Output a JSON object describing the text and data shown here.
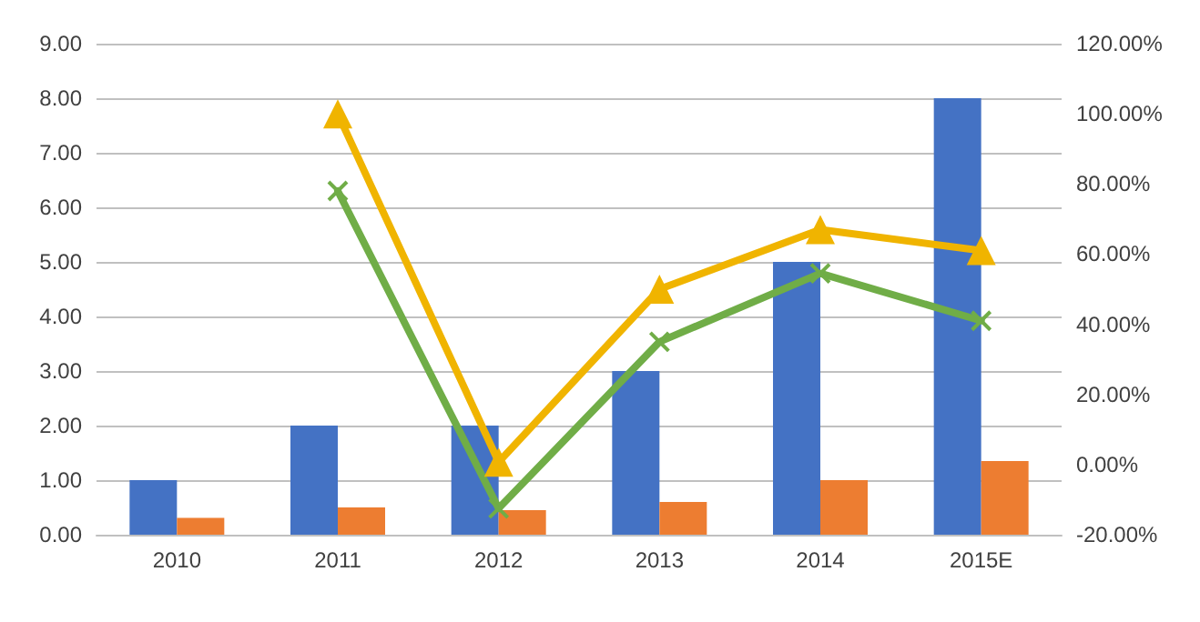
{
  "chart_data": {
    "type": "bar",
    "categories": [
      "2010",
      "2011",
      "2012",
      "2013",
      "2014",
      "2015E"
    ],
    "series": [
      {
        "color": "#4472c4",
        "values": [
          1,
          2,
          2,
          3,
          5,
          8
        ]
      },
      {
        "color": "#ed7d31",
        "values": [
          0.31,
          0.5,
          0.45,
          0.6,
          1.0,
          1.35
        ]
      },
      {
        "type": "line",
        "axis": "y2",
        "color": "#f0b400",
        "marker": "triangle",
        "values": [
          null,
          100,
          0.7,
          50,
          67,
          61
        ]
      },
      {
        "type": "line",
        "axis": "y2",
        "color": "#70ad47",
        "marker": "cross",
        "values": [
          null,
          78,
          -12.5,
          35,
          54.5,
          41
        ]
      }
    ],
    "ylim": [
      0,
      9
    ],
    "yticks": [
      {
        "value": 0,
        "label": "0.00"
      },
      {
        "value": 1,
        "label": "1.00"
      },
      {
        "value": 2,
        "label": "2.00"
      },
      {
        "value": 3,
        "label": "3.00"
      },
      {
        "value": 4,
        "label": "4.00"
      },
      {
        "value": 5,
        "label": "5.00"
      },
      {
        "value": 6,
        "label": "6.00"
      },
      {
        "value": 7,
        "label": "7.00"
      },
      {
        "value": 8,
        "label": "8.00"
      },
      {
        "value": 9,
        "label": "9.00"
      }
    ],
    "y2lim": [
      -20,
      120
    ],
    "y2ticks": [
      {
        "value": -20,
        "label": "-20.00%"
      },
      {
        "value": 0,
        "label": "0.00%"
      },
      {
        "value": 20,
        "label": "20.00%"
      },
      {
        "value": 40,
        "label": "40.00%"
      },
      {
        "value": 60,
        "label": "60.00%"
      },
      {
        "value": 80,
        "label": "80.00%"
      },
      {
        "value": 100,
        "label": "100.00%"
      },
      {
        "value": 120,
        "label": "120.00%"
      }
    ],
    "grid": "y",
    "line_style": "solid"
  }
}
